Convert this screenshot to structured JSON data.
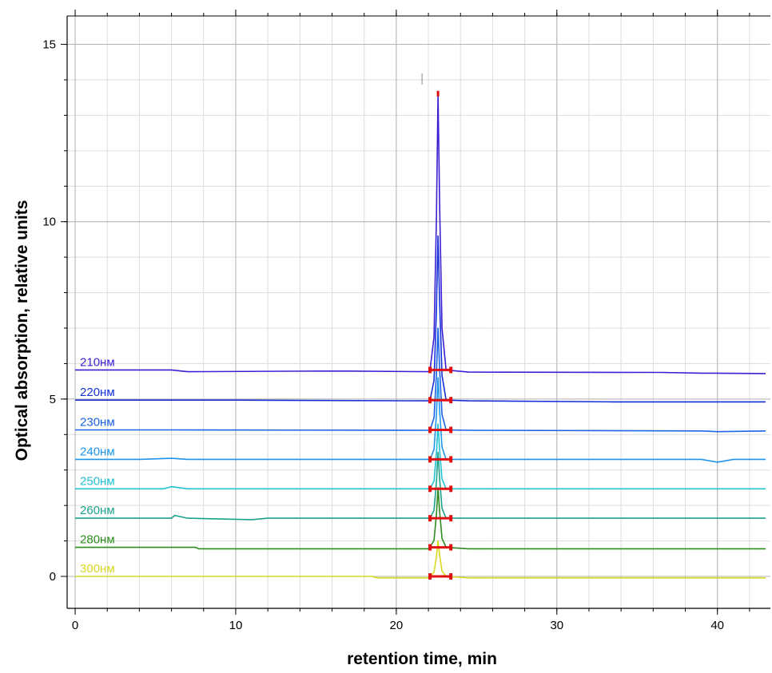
{
  "chart_data": {
    "type": "line",
    "title": "",
    "xlabel": "retention time, min",
    "ylabel": "Optical absorption, relative units",
    "xlim": [
      -0.5,
      43.3
    ],
    "ylim": [
      -0.9,
      15.8
    ],
    "x_ticks": [
      0,
      10,
      20,
      30,
      40
    ],
    "y_ticks": [
      0,
      5,
      10,
      15
    ],
    "x_minor_step": 2,
    "y_minor_step": 1,
    "grid": true,
    "peak_time": 22.6,
    "integration_start": 22.1,
    "integration_end": 23.4,
    "series": [
      {
        "name": "210нм",
        "color": "#3b1fd4",
        "baseline": 5.82,
        "peak_top": 13.6,
        "points": [
          [
            0,
            5.82
          ],
          [
            6,
            5.82
          ],
          [
            7,
            5.77
          ],
          [
            15,
            5.79
          ],
          [
            17,
            5.79
          ],
          [
            22.0,
            5.77
          ],
          [
            24.5,
            5.76
          ],
          [
            36.5,
            5.75
          ],
          [
            39,
            5.73
          ],
          [
            43,
            5.72
          ]
        ]
      },
      {
        "name": "220нм",
        "color": "#1530d8",
        "baseline": 4.97,
        "peak_top": 9.6,
        "points": [
          [
            0,
            4.97
          ],
          [
            10,
            4.97
          ],
          [
            22.0,
            4.95
          ],
          [
            24.5,
            4.95
          ],
          [
            33.5,
            4.92
          ],
          [
            43,
            4.92
          ]
        ]
      },
      {
        "name": "230нм",
        "color": "#1a62e6",
        "baseline": 4.13,
        "peak_top": 7.0,
        "points": [
          [
            0,
            4.13
          ],
          [
            6,
            4.13
          ],
          [
            22.0,
            4.12
          ],
          [
            24.5,
            4.12
          ],
          [
            39,
            4.1
          ],
          [
            40,
            4.08
          ],
          [
            43,
            4.1
          ]
        ]
      },
      {
        "name": "240нм",
        "color": "#1e95ea",
        "baseline": 3.3,
        "peak_top": 5.6,
        "points": [
          [
            0,
            3.3
          ],
          [
            4,
            3.3
          ],
          [
            6,
            3.33
          ],
          [
            7,
            3.3
          ],
          [
            22.0,
            3.3
          ],
          [
            24.5,
            3.3
          ],
          [
            39,
            3.3
          ],
          [
            40,
            3.22
          ],
          [
            41,
            3.3
          ],
          [
            43,
            3.3
          ]
        ]
      },
      {
        "name": "250нм",
        "color": "#22c1d4",
        "baseline": 2.47,
        "peak_top": 4.3,
        "points": [
          [
            0,
            2.47
          ],
          [
            5.5,
            2.47
          ],
          [
            6,
            2.53
          ],
          [
            7,
            2.47
          ],
          [
            22.0,
            2.47
          ],
          [
            24.5,
            2.47
          ],
          [
            43,
            2.47
          ]
        ]
      },
      {
        "name": "260нм",
        "color": "#1aa38a",
        "baseline": 1.64,
        "peak_top": 3.5,
        "points": [
          [
            0,
            1.64
          ],
          [
            6,
            1.64
          ],
          [
            6.2,
            1.72
          ],
          [
            7,
            1.64
          ],
          [
            11,
            1.6
          ],
          [
            12,
            1.64
          ],
          [
            22.0,
            1.64
          ],
          [
            24.5,
            1.64
          ],
          [
            43,
            1.64
          ]
        ]
      },
      {
        "name": "280нм",
        "color": "#2e8b1f",
        "baseline": 0.82,
        "peak_top": 2.5,
        "points": [
          [
            0,
            0.82
          ],
          [
            7.5,
            0.82
          ],
          [
            7.7,
            0.78
          ],
          [
            22.0,
            0.78
          ],
          [
            24.5,
            0.78
          ],
          [
            43,
            0.78
          ]
        ]
      },
      {
        "name": "300нм",
        "color": "#d8d820",
        "baseline": 0.0,
        "peak_top": 1.0,
        "points": [
          [
            0,
            0.0
          ],
          [
            18.5,
            0.0
          ],
          [
            18.8,
            -0.04
          ],
          [
            22.0,
            -0.04
          ],
          [
            24.5,
            -0.04
          ],
          [
            43,
            -0.04
          ]
        ]
      }
    ]
  }
}
